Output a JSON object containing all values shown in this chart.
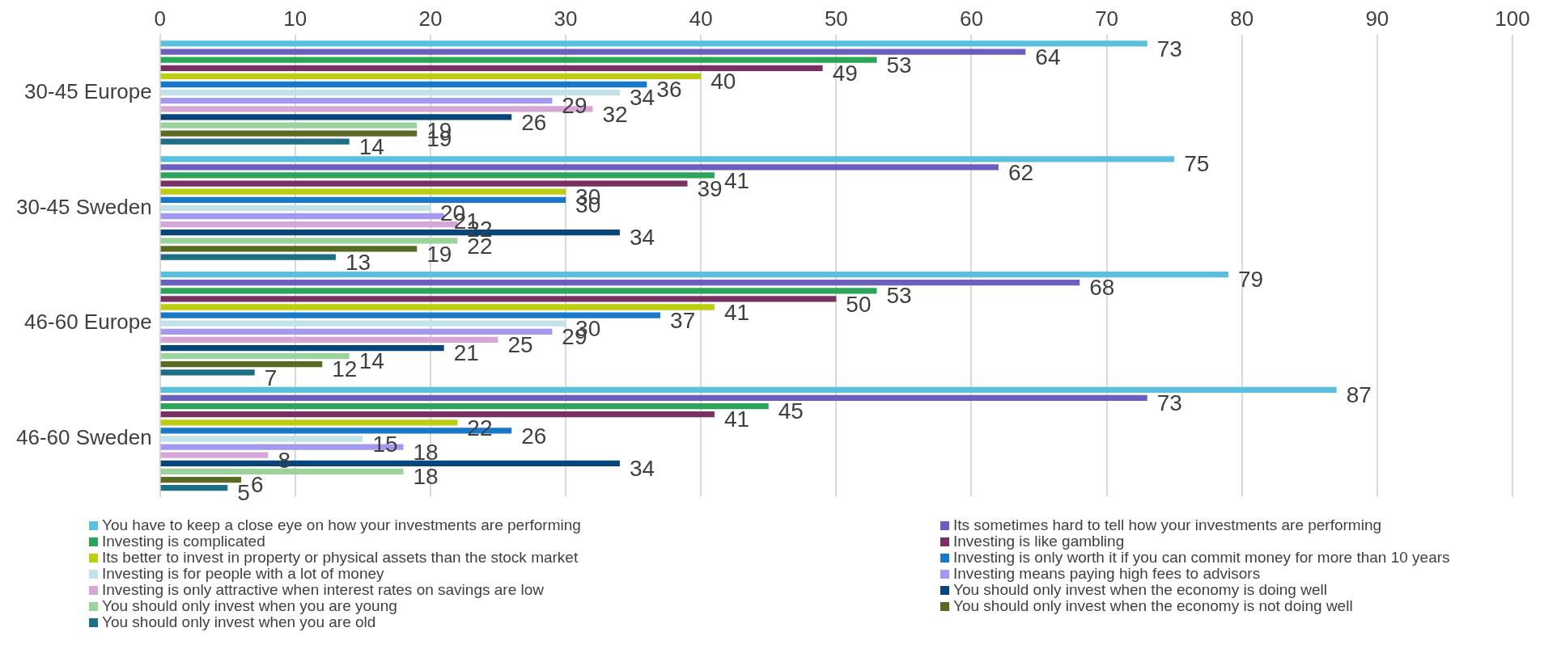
{
  "chart_data": {
    "type": "bar",
    "orientation": "horizontal",
    "categories": [
      "30-45 Europe",
      "30-45 Sweden",
      "46-60 Europe",
      "46-60 Sweden"
    ],
    "series": [
      {
        "name": "You have to keep a close eye on how your investments are performing",
        "color": "#5bc0de",
        "values": [
          73,
          75,
          79,
          87
        ]
      },
      {
        "name": "Its sometimes hard to tell how your investments are performing",
        "color": "#6a5fbf",
        "values": [
          64,
          62,
          68,
          73
        ]
      },
      {
        "name": "Investing is complicated",
        "color": "#2ca55a",
        "values": [
          53,
          41,
          53,
          45
        ]
      },
      {
        "name": "Investing is like gambling",
        "color": "#7a2f63",
        "values": [
          49,
          39,
          50,
          41
        ]
      },
      {
        "name": "Its better to invest in property or physical assets than the stock market",
        "color": "#bccd12",
        "values": [
          40,
          30,
          41,
          22
        ]
      },
      {
        "name": "Investing is only worth it if you can commit money for more than 10 years",
        "color": "#1a78c9",
        "values": [
          36,
          30,
          37,
          26
        ]
      },
      {
        "name": "Investing is for people with a lot of money",
        "color": "#c2e2ea",
        "values": [
          34,
          20,
          30,
          15
        ]
      },
      {
        "name": "Investing means paying high fees to advisors",
        "color": "#a39af0",
        "values": [
          29,
          21,
          29,
          18
        ]
      },
      {
        "name": "Investing is only attractive when interest rates on savings are low",
        "color": "#d6a6d6",
        "values": [
          32,
          22,
          25,
          8
        ]
      },
      {
        "name": "You should only invest when the economy is doing well",
        "color": "#07457a",
        "values": [
          26,
          34,
          21,
          34
        ]
      },
      {
        "name": "You should only invest when you are young",
        "color": "#9ad39c",
        "values": [
          19,
          22,
          14,
          18
        ]
      },
      {
        "name": "You should only invest when the economy is not doing well",
        "color": "#5a6a22",
        "values": [
          19,
          19,
          12,
          6
        ]
      },
      {
        "name": "You should only invest when you are old",
        "color": "#1d6f86",
        "values": [
          14,
          13,
          7,
          5
        ]
      }
    ],
    "xlim": [
      0,
      100
    ],
    "xticks": [
      0,
      10,
      20,
      30,
      40,
      50,
      60,
      70,
      80,
      90,
      100
    ],
    "grid": "x",
    "data_labels": true,
    "legend": "bottom"
  }
}
